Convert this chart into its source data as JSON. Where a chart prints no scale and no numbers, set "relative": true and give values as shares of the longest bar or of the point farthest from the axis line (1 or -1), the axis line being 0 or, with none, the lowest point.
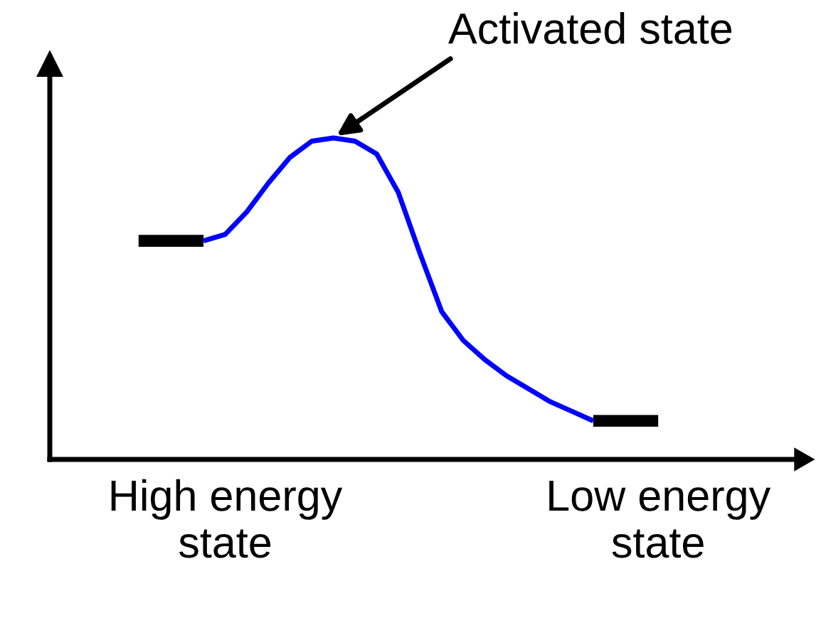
{
  "chart_data": {
    "type": "line",
    "relative": true,
    "categories": [
      null,
      null,
      null,
      null,
      "High energy\nstate",
      null,
      null,
      null,
      null,
      null,
      null,
      null,
      null,
      null,
      null,
      null,
      null,
      null,
      null,
      null,
      null,
      null,
      null,
      null,
      "Low energy\nstate"
    ],
    "series": [
      {
        "color": "#000000",
        "values": [
          0.68,
          0.68,
          0.68,
          0.68,
          null,
          null,
          null,
          null,
          null,
          null,
          null,
          null,
          null,
          null,
          null,
          null,
          null,
          null,
          null,
          null,
          null,
          0.12,
          0.12,
          0.12,
          0.12
        ]
      },
      {
        "color": "#0000ff",
        "values": [
          null,
          null,
          null,
          0.68,
          0.7,
          0.77,
          0.86,
          0.94,
          0.99,
          1,
          0.99,
          0.95,
          0.83,
          0.64,
          0.46,
          0.37,
          0.31,
          0.26,
          0.22,
          0.18,
          0.15,
          0.12,
          null,
          null,
          null
        ]
      }
    ],
    "annotations": [
      "Activated state"
    ]
  }
}
